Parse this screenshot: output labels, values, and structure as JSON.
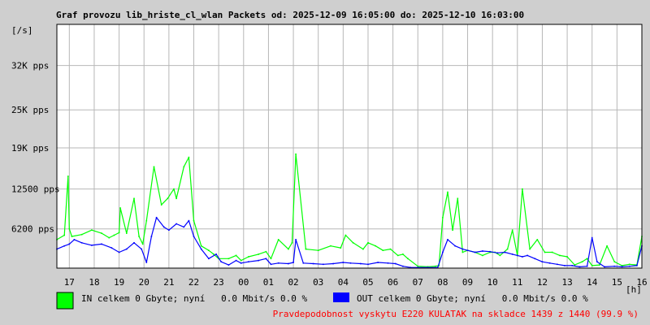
{
  "colors": {
    "background": "#cfcfcf",
    "plot_background": "#ffffff",
    "grid": "#b7b7b7",
    "in_series": "#00ff00",
    "out_series": "#0000ff",
    "warning": "#ff0000"
  },
  "chart_data": {
    "type": "line",
    "title": "Graf provozu lib_hriste_cl_wlan Packets od: 2025-12-09 16:05:00 do: 2025-12-10 16:03:00",
    "ylabel": "[/s]",
    "xlabel": "[h]",
    "ylim": [
      0,
      38500
    ],
    "y_ticks": [
      {
        "value": 6200,
        "label": "6200 pps"
      },
      {
        "value": 12500,
        "label": "12500 pps"
      },
      {
        "value": 19000,
        "label": "19K pps"
      },
      {
        "value": 25000,
        "label": "25K pps"
      },
      {
        "value": 32000,
        "label": "32K pps"
      }
    ],
    "x_range": [
      16.5,
      40.0
    ],
    "x_ticks": [
      {
        "value": 17,
        "label": "17"
      },
      {
        "value": 18,
        "label": "18"
      },
      {
        "value": 19,
        "label": "19"
      },
      {
        "value": 20,
        "label": "20"
      },
      {
        "value": 21,
        "label": "21"
      },
      {
        "value": 22,
        "label": "22"
      },
      {
        "value": 23,
        "label": "23"
      },
      {
        "value": 24,
        "label": "00"
      },
      {
        "value": 25,
        "label": "01"
      },
      {
        "value": 26,
        "label": "02"
      },
      {
        "value": 27,
        "label": "03"
      },
      {
        "value": 28,
        "label": "04"
      },
      {
        "value": 29,
        "label": "05"
      },
      {
        "value": 30,
        "label": "06"
      },
      {
        "value": 31,
        "label": "07"
      },
      {
        "value": 32,
        "label": "08"
      },
      {
        "value": 33,
        "label": "09"
      },
      {
        "value": 34,
        "label": "10"
      },
      {
        "value": 35,
        "label": "11"
      },
      {
        "value": 36,
        "label": "12"
      },
      {
        "value": 37,
        "label": "13"
      },
      {
        "value": 38,
        "label": "14"
      },
      {
        "value": 39,
        "label": "15"
      },
      {
        "value": 40,
        "label": "16"
      }
    ],
    "grid": true,
    "series": [
      {
        "key": "in",
        "color": "#00ff00",
        "x": [
          16.5,
          16.8,
          16.95,
          17.0,
          17.1,
          17.5,
          17.9,
          18.3,
          18.6,
          18.8,
          19.0,
          19.05,
          19.3,
          19.6,
          19.8,
          19.95,
          20.1,
          20.4,
          20.7,
          20.95,
          21.2,
          21.3,
          21.6,
          21.8,
          22.0,
          22.3,
          22.6,
          22.8,
          23.0,
          23.4,
          23.7,
          23.9,
          24.2,
          24.6,
          24.9,
          25.1,
          25.4,
          25.8,
          25.95,
          26.1,
          26.5,
          27.0,
          27.5,
          27.9,
          28.1,
          28.4,
          28.8,
          29.0,
          29.3,
          29.6,
          29.9,
          30.2,
          30.4,
          30.6,
          31.0,
          31.4,
          31.7,
          31.85,
          32.0,
          32.2,
          32.4,
          32.6,
          32.8,
          33.0,
          33.3,
          33.6,
          33.9,
          34.1,
          34.3,
          34.6,
          34.8,
          35.0,
          35.2,
          35.5,
          35.8,
          36.1,
          36.4,
          36.7,
          37.0,
          37.3,
          37.6,
          37.8,
          38.0,
          38.3,
          38.6,
          38.9,
          39.2,
          39.5,
          39.8,
          40.0
        ],
        "values": [
          4500,
          5200,
          14500,
          6200,
          5000,
          5300,
          6000,
          5500,
          4800,
          5200,
          5600,
          9500,
          5500,
          11000,
          5000,
          3800,
          7500,
          16000,
          10000,
          11000,
          12500,
          11000,
          16000,
          17500,
          7500,
          3500,
          2800,
          2200,
          1500,
          1500,
          2000,
          1200,
          1800,
          2200,
          2600,
          1500,
          4500,
          3000,
          4000,
          18000,
          3000,
          2800,
          3500,
          3200,
          5200,
          4000,
          3000,
          4000,
          3500,
          2800,
          3000,
          2000,
          2200,
          1500,
          300,
          200,
          300,
          400,
          8000,
          12000,
          6000,
          11000,
          2500,
          2800,
          2500,
          2000,
          2500,
          2500,
          2000,
          3000,
          6000,
          2000,
          12500,
          3000,
          4500,
          2500,
          2500,
          2000,
          1800,
          500,
          1000,
          1500,
          400,
          500,
          3500,
          1000,
          400,
          600,
          500,
          5000
        ]
      },
      {
        "key": "out",
        "color": "#0000ff",
        "x": [
          16.5,
          16.8,
          17.0,
          17.2,
          17.5,
          17.9,
          18.3,
          18.7,
          19.0,
          19.3,
          19.6,
          19.9,
          20.1,
          20.3,
          20.5,
          20.8,
          21.0,
          21.3,
          21.6,
          21.8,
          22.0,
          22.3,
          22.6,
          22.9,
          23.1,
          23.4,
          23.7,
          23.9,
          24.2,
          24.6,
          24.9,
          25.1,
          25.4,
          25.8,
          26.0,
          26.1,
          26.4,
          26.8,
          27.2,
          27.6,
          28.0,
          28.3,
          28.7,
          29.0,
          29.4,
          29.8,
          30.1,
          30.4,
          30.7,
          31.0,
          31.4,
          31.8,
          32.0,
          32.2,
          32.5,
          32.8,
          33.0,
          33.3,
          33.6,
          33.9,
          34.2,
          34.5,
          34.8,
          35.0,
          35.2,
          35.4,
          35.7,
          36.0,
          36.3,
          36.6,
          36.9,
          37.2,
          37.5,
          37.8,
          38.0,
          38.2,
          38.5,
          38.9,
          39.2,
          39.5,
          39.8,
          40.0
        ],
        "values": [
          3000,
          3500,
          3800,
          4500,
          4000,
          3600,
          3800,
          3200,
          2500,
          3000,
          4000,
          3000,
          900,
          5000,
          8000,
          6500,
          6000,
          7000,
          6500,
          7500,
          5000,
          3000,
          1500,
          2200,
          1000,
          500,
          1200,
          800,
          1000,
          1200,
          1500,
          600,
          800,
          700,
          900,
          4500,
          800,
          700,
          600,
          700,
          900,
          800,
          700,
          600,
          900,
          800,
          700,
          300,
          100,
          100,
          100,
          100,
          2500,
          4500,
          3500,
          3000,
          2800,
          2500,
          2700,
          2600,
          2400,
          2500,
          2200,
          2000,
          1800,
          2000,
          1500,
          1000,
          800,
          600,
          400,
          400,
          200,
          300,
          4800,
          1000,
          200,
          300,
          200,
          300,
          400,
          3500
        ]
      }
    ]
  },
  "legend": {
    "in_label": "IN celkem 0 Gbyte; nyní   0.0 Mbit/s 0.0 %",
    "out_label": "OUT celkem 0 Gbyte; nyní   0.0 Mbit/s 0.0 %"
  },
  "warning_text": "Pravdepodobnost vyskytu E220 KULATAK na skladce 1439 z 1440 (99.9 %)"
}
